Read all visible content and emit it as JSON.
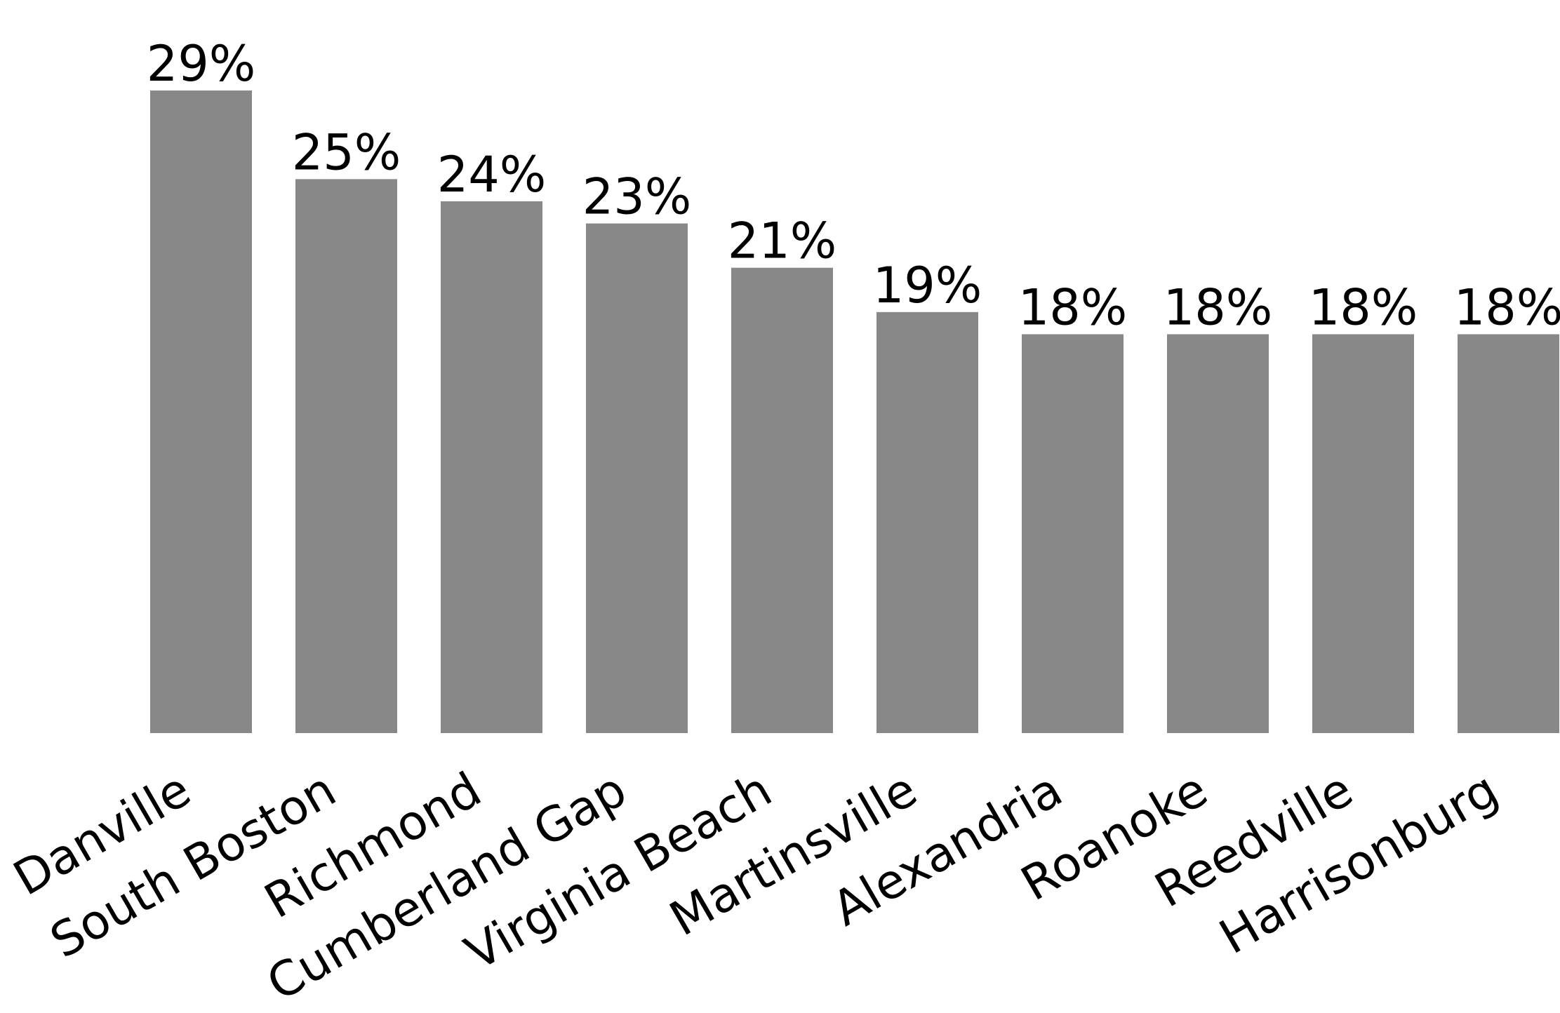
{
  "chart_data": {
    "type": "bar",
    "categories": [
      "Danville",
      "South Boston",
      "Richmond",
      "Cumberland Gap",
      "Virginia Beach",
      "Martinsville",
      "Alexandria",
      "Roanoke",
      "Reedville",
      "Harrisonburg"
    ],
    "values": [
      29,
      25,
      24,
      23,
      21,
      19,
      18,
      18,
      18,
      18
    ],
    "value_labels": [
      "29%",
      "25%",
      "24%",
      "23%",
      "21%",
      "19%",
      "18%",
      "18%",
      "18%",
      "18%"
    ],
    "unit": "%",
    "title": "",
    "xlabel": "",
    "ylabel": "",
    "ylim": [
      0,
      29
    ],
    "grid": false,
    "legend": "none",
    "bar_color": "#888888"
  }
}
